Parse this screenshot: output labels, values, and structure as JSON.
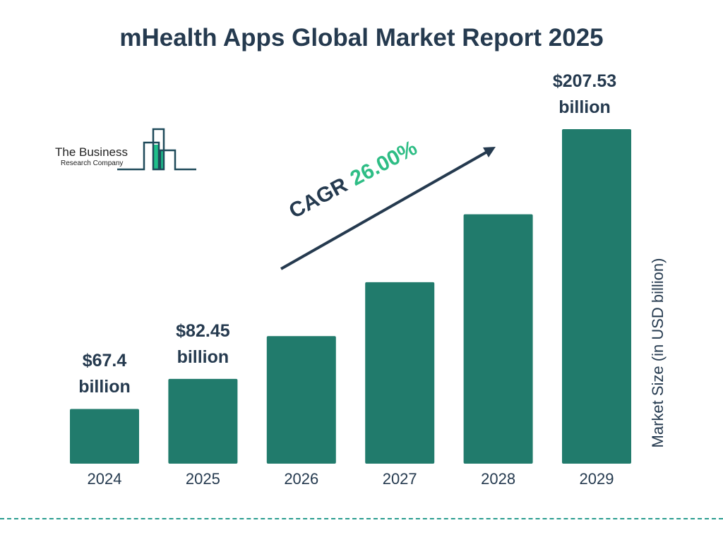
{
  "title": "mHealth Apps Global Market Report 2025",
  "logo": {
    "line1": "The Business",
    "line2": "Research Company"
  },
  "colors": {
    "bar": "#217b6c",
    "text": "#253a4f",
    "accent": "#2ebd85",
    "logo_fill": "#1fbf8a",
    "logo_stroke": "#1f4a5a"
  },
  "chart_data": {
    "type": "bar",
    "title": "mHealth Apps Global Market Report 2025",
    "categories": [
      "2024",
      "2025",
      "2026",
      "2027",
      "2028",
      "2029"
    ],
    "values": [
      67.4,
      82.45,
      103.9,
      130.9,
      164.9,
      207.53
    ],
    "data_labels": [
      {
        "index": 0,
        "line1": "$67.4",
        "line2": "billion"
      },
      {
        "index": 1,
        "line1": "$82.45",
        "line2": "billion"
      },
      {
        "index": 5,
        "line1": "$207.53",
        "line2": "billion"
      }
    ],
    "ylabel": "Market Size (in USD billion)",
    "xlabel": "",
    "ylim": [
      40,
      207.53
    ],
    "grid": false,
    "annotation": {
      "label": "CAGR",
      "value": "26.00%"
    }
  }
}
